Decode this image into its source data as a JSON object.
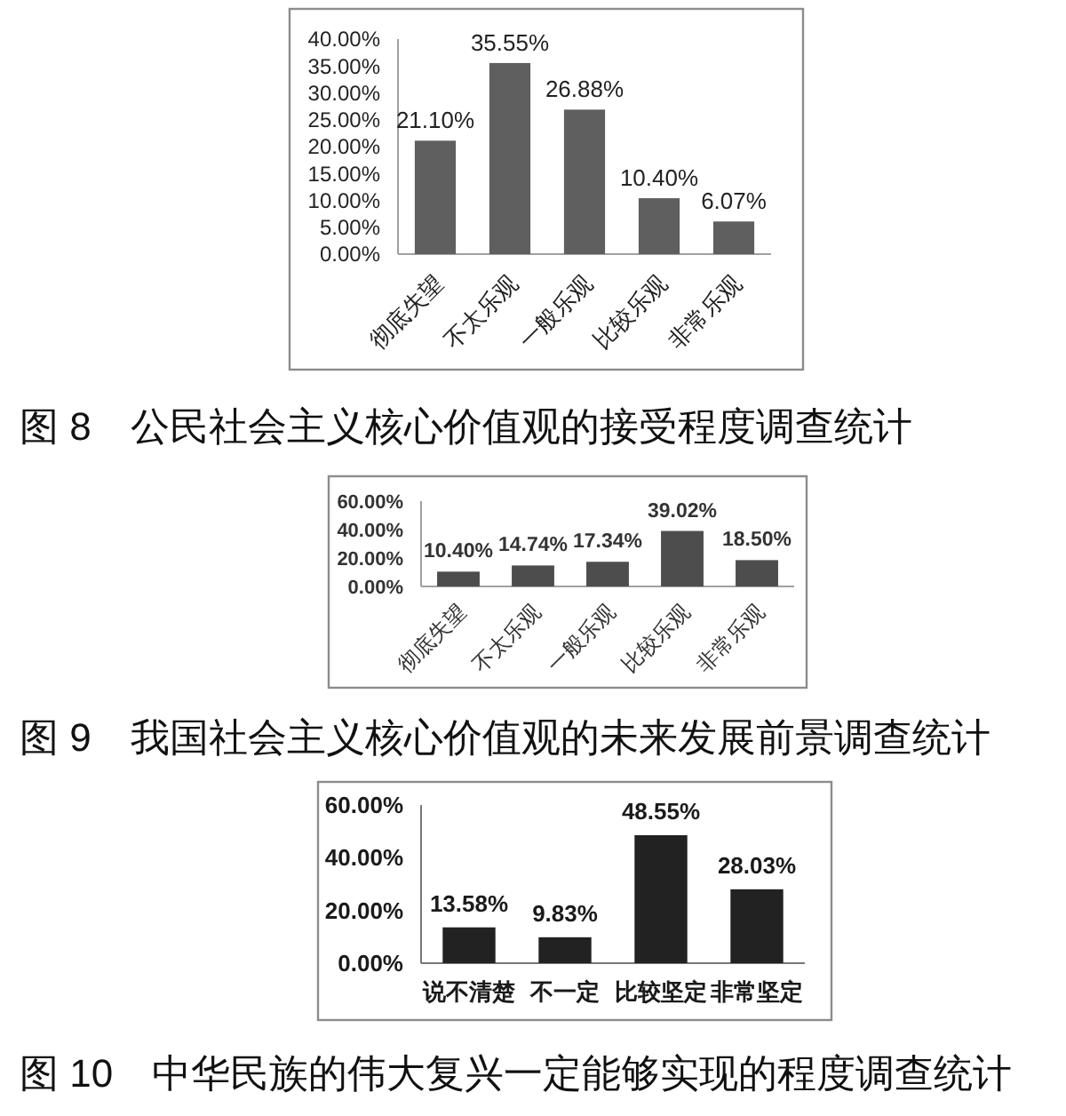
{
  "chart_data": [
    {
      "type": "bar",
      "title": "图 8　公民社会主义核心价值观的接受程度调查统计",
      "categories": [
        "彻底失望",
        "不太乐观",
        "一般乐观",
        "比较乐观",
        "非常乐观"
      ],
      "values": [
        21.1,
        35.55,
        26.88,
        10.4,
        6.07
      ],
      "value_labels": [
        "21.10%",
        "35.55%",
        "26.88%",
        "10.40%",
        "6.07%"
      ],
      "color": "#5f5f5f",
      "ylim": [
        0,
        40
      ],
      "yticks": [
        {
          "value": 0,
          "label": "0.00%"
        },
        {
          "value": 5,
          "label": "5.00%"
        },
        {
          "value": 10,
          "label": "10.00%"
        },
        {
          "value": 15,
          "label": "15.00%"
        },
        {
          "value": 20,
          "label": "20.00%"
        },
        {
          "value": 25,
          "label": "25.00%"
        },
        {
          "value": 30,
          "label": "30.00%"
        },
        {
          "value": 35,
          "label": "35.00%"
        },
        {
          "value": 40,
          "label": "40.00%"
        }
      ]
    },
    {
      "type": "bar",
      "title": "图 9　我国社会主义核心价值观的未来发展前景调查统计",
      "categories": [
        "彻底失望",
        "不太乐观",
        "一般乐观",
        "比较乐观",
        "非常乐观"
      ],
      "values": [
        10.4,
        14.74,
        17.34,
        39.02,
        18.5
      ],
      "value_labels": [
        "10.40%",
        "14.74%",
        "17.34%",
        "39.02%",
        "18.50%"
      ],
      "color": "#4d4d4d",
      "ylim": [
        0,
        60
      ],
      "yticks": [
        {
          "value": 0,
          "label": "0.00%"
        },
        {
          "value": 20,
          "label": "20.00%"
        },
        {
          "value": 40,
          "label": "40.00%"
        },
        {
          "value": 60,
          "label": "60.00%"
        }
      ]
    },
    {
      "type": "bar",
      "title": "图 10　中华民族的伟大复兴一定能够实现的程度调查统计",
      "categories": [
        "说不清楚",
        "不一定",
        "比较坚定",
        "非常坚定"
      ],
      "values": [
        13.58,
        9.83,
        48.55,
        28.03
      ],
      "value_labels": [
        "13.58%",
        "9.83%",
        "48.55%",
        "28.03%"
      ],
      "color": "#222222",
      "ylim": [
        0,
        60
      ],
      "yticks": [
        {
          "value": 0,
          "label": "0.00%"
        },
        {
          "value": 20,
          "label": "20.00%"
        },
        {
          "value": 40,
          "label": "40.00%"
        },
        {
          "value": 60,
          "label": "60.00%"
        }
      ]
    }
  ]
}
